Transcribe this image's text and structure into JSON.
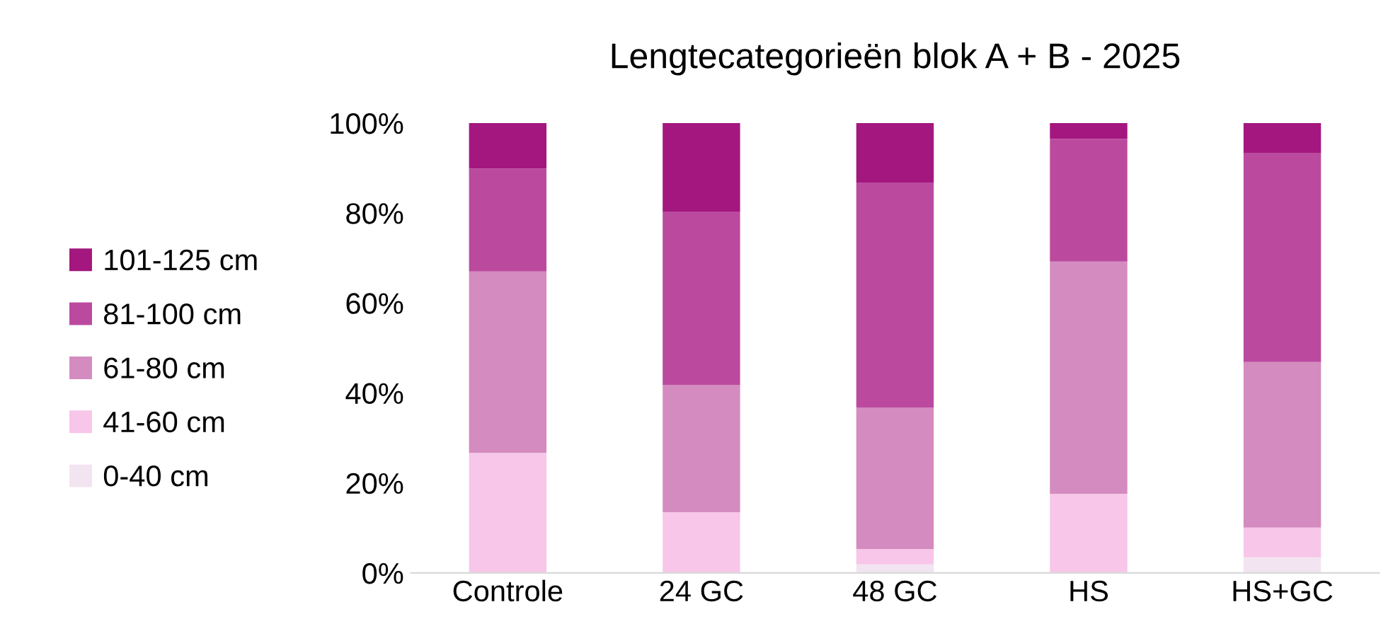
{
  "chart_data": {
    "type": "bar",
    "title": "Lengtecategorieën blok A + B - 2025",
    "categories": [
      "Controle",
      "24 GC",
      "48 GC",
      "HS",
      "HS+GC"
    ],
    "stacked": true,
    "legend": "left",
    "grid": false,
    "ylim": [
      0,
      100
    ],
    "yticks": [
      {
        "value": 0,
        "label": "0%"
      },
      {
        "value": 20,
        "label": "20%"
      },
      {
        "value": 40,
        "label": "40%"
      },
      {
        "value": 60,
        "label": "60%"
      },
      {
        "value": 80,
        "label": "80%"
      },
      {
        "value": 100,
        "label": "100%"
      }
    ],
    "series": [
      {
        "name": "0-40 cm",
        "color": "#f2e4f0",
        "values": [
          0,
          0,
          1.9,
          0,
          3.5
        ]
      },
      {
        "name": "41-60 cm",
        "color": "#f7c6e9",
        "values": [
          26.7,
          13.5,
          3.4,
          17.6,
          6.6
        ]
      },
      {
        "name": "61-80 cm",
        "color": "#d48bbf",
        "values": [
          40.3,
          28.3,
          31.5,
          51.6,
          36.8
        ]
      },
      {
        "name": "81-100 cm",
        "color": "#bb4a9f",
        "values": [
          22.9,
          38.4,
          50.0,
          27.3,
          46.5
        ]
      },
      {
        "name": "101-125 cm",
        "color": "#a3177f",
        "values": [
          10.1,
          19.8,
          13.2,
          3.5,
          6.6
        ]
      }
    ]
  }
}
